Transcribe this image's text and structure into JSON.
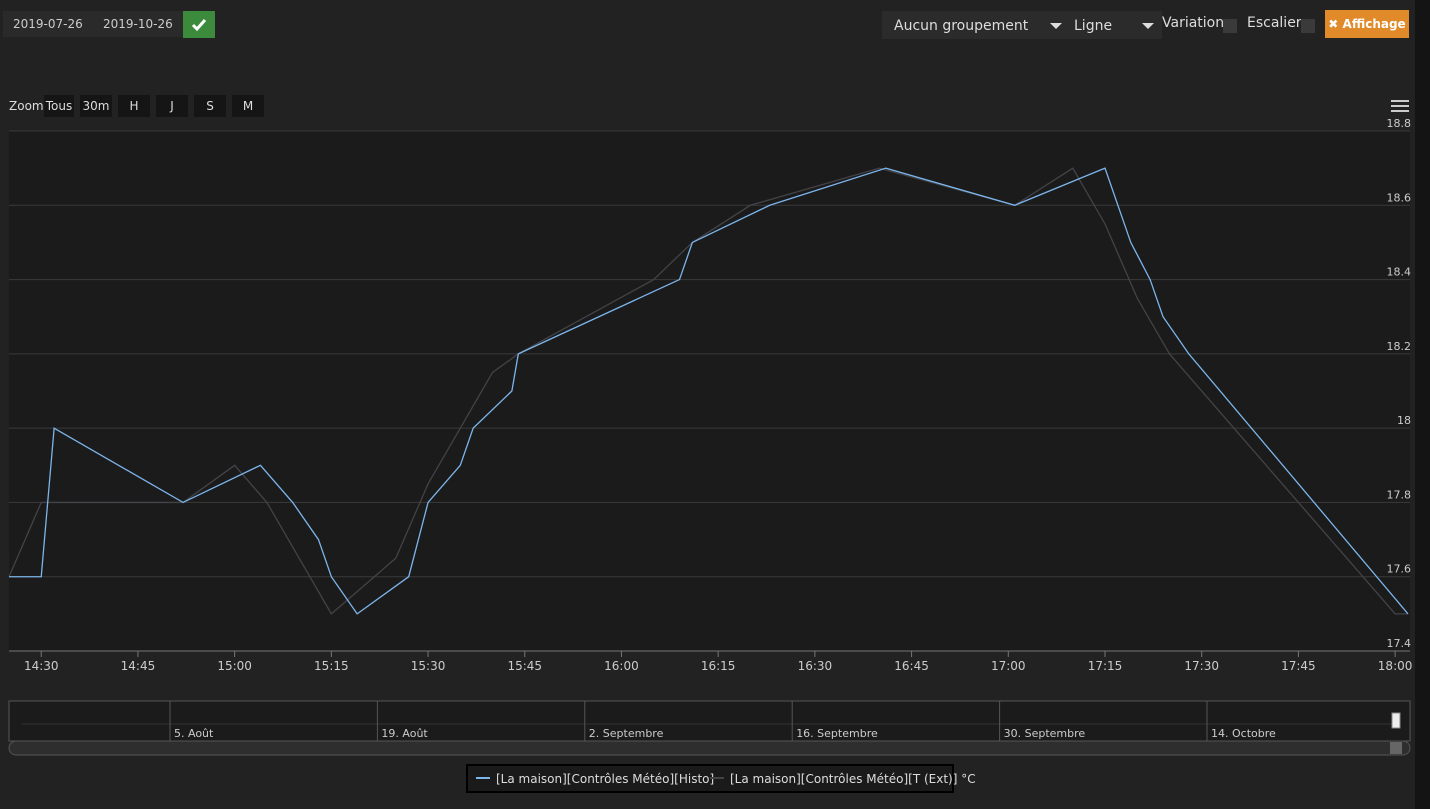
{
  "toolbar": {
    "start_date": "2019-07-26",
    "end_date": "2019-10-26",
    "grouping": "Aucun groupement",
    "chart_kind": "Ligne",
    "variation": "Variation",
    "stairs": "Escalier",
    "display": "Affichage"
  },
  "zoom": {
    "label": "Zoom",
    "buttons": [
      "Tous",
      "30m",
      "H",
      "J",
      "S",
      "M"
    ]
  },
  "navigator": {
    "labels": [
      "5. Août",
      "19. Août",
      "2. Septembre",
      "16. Septembre",
      "30. Septembre",
      "14. Octobre"
    ]
  },
  "chart_data": {
    "type": "line",
    "xlim": [
      865,
      1082
    ],
    "xticks": [
      {
        "value": 870,
        "label": "14:30"
      },
      {
        "value": 885,
        "label": "14:45"
      },
      {
        "value": 900,
        "label": "15:00"
      },
      {
        "value": 915,
        "label": "15:15"
      },
      {
        "value": 930,
        "label": "15:30"
      },
      {
        "value": 945,
        "label": "15:45"
      },
      {
        "value": 960,
        "label": "16:00"
      },
      {
        "value": 975,
        "label": "16:15"
      },
      {
        "value": 990,
        "label": "16:30"
      },
      {
        "value": 1005,
        "label": "16:45"
      },
      {
        "value": 1020,
        "label": "17:00"
      },
      {
        "value": 1035,
        "label": "17:15"
      },
      {
        "value": 1050,
        "label": "17:30"
      },
      {
        "value": 1065,
        "label": "17:45"
      },
      {
        "value": 1080,
        "label": "18:00"
      }
    ],
    "ylim": [
      17.4,
      18.8
    ],
    "yticks": [
      17.4,
      17.6,
      17.8,
      18,
      18.2,
      18.4,
      18.6,
      18.8
    ],
    "grid": true,
    "series": [
      {
        "name": "[La maison][Contrôles Météo][Histo]",
        "color": "#7cb5ec",
        "x": [
          865,
          870,
          872,
          892,
          904,
          909,
          913,
          915,
          919,
          927,
          930,
          935,
          937,
          943,
          944,
          969,
          971,
          983,
          1001,
          1021,
          1035,
          1039,
          1042,
          1044,
          1048,
          1082
        ],
        "values": [
          17.6,
          17.6,
          18.0,
          17.8,
          17.9,
          17.8,
          17.7,
          17.6,
          17.5,
          17.6,
          17.8,
          17.9,
          18.0,
          18.1,
          18.2,
          18.4,
          18.5,
          18.6,
          18.7,
          18.6,
          18.7,
          18.5,
          18.4,
          18.3,
          18.2,
          17.5
        ]
      },
      {
        "name": "[La maison][Contrôles Météo][T (Ext)] °C",
        "color": "#434348",
        "x": [
          865,
          870,
          892,
          900,
          905,
          915,
          925,
          930,
          940,
          944,
          965,
          971,
          980,
          1000,
          1021,
          1030,
          1035,
          1040,
          1045,
          1080,
          1082
        ],
        "values": [
          17.6,
          17.8,
          17.8,
          17.9,
          17.8,
          17.5,
          17.65,
          17.85,
          18.15,
          18.2,
          18.4,
          18.5,
          18.6,
          18.7,
          18.6,
          18.7,
          18.55,
          18.35,
          18.2,
          17.5,
          17.5
        ]
      }
    ]
  }
}
